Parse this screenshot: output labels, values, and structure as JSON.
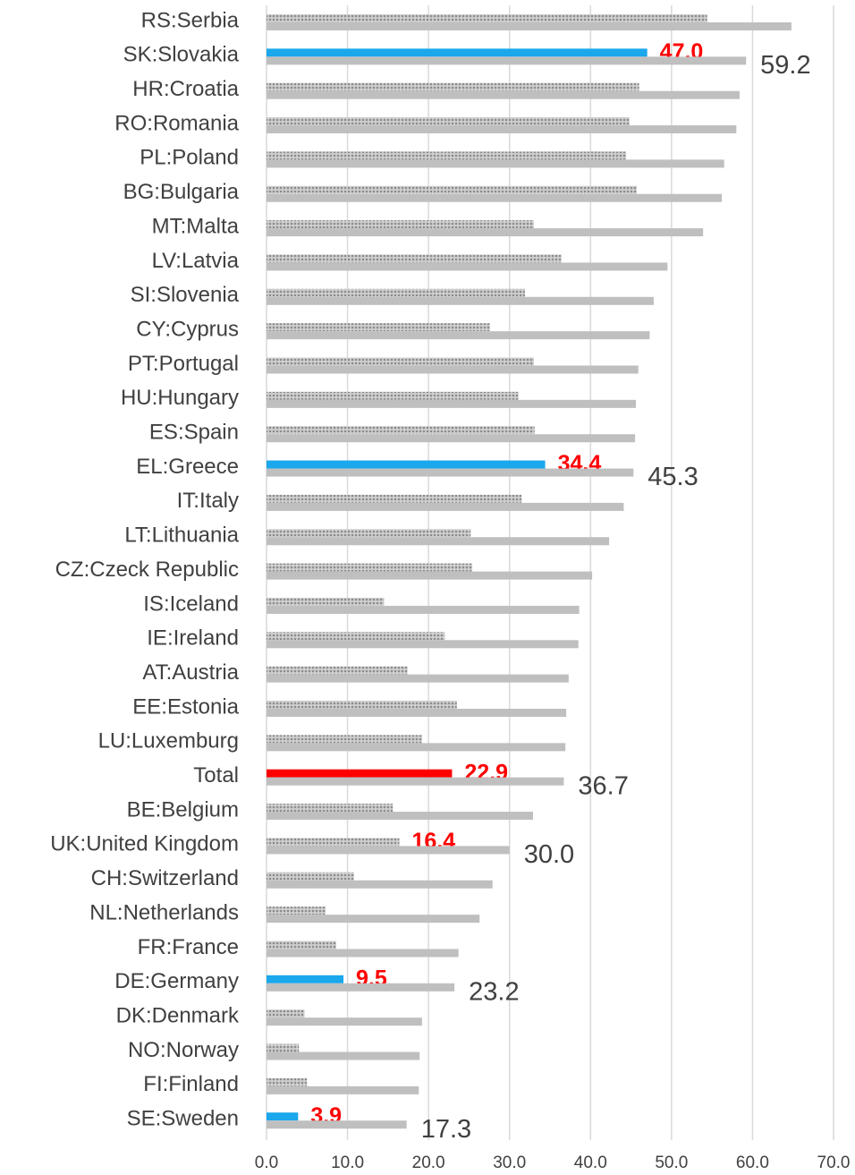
{
  "chart_data": {
    "type": "barh",
    "categories": [
      "RS:Serbia",
      "SK:Slovakia",
      "HR:Croatia",
      "RO:Romania",
      "PL:Poland",
      "BG:Bulgaria",
      "MT:Malta",
      "LV:Latvia",
      "SI:Slovenia",
      "CY:Cyprus",
      "PT:Portugal",
      "HU:Hungary",
      "ES:Spain",
      "EL:Greece",
      "IT:Italy",
      "LT:Lithuania",
      "CZ:Czeck Republic",
      "IS:Iceland",
      "IE:Ireland",
      "AT:Austria",
      "EE:Estonia",
      "LU:Luxemburg",
      "Total",
      "BE:Belgium",
      "UK:United Kingdom",
      "CH:Switzerland",
      "NL:Netherlands",
      "FR:France",
      "DE:Germany",
      "DK:Denmark",
      "NO:Norway",
      "FI:Finland",
      "SE:Sweden"
    ],
    "series": [
      {
        "color": "#8c8c8c",
        "colors": [
          "#8c8c8c",
          "#1aa7ec",
          "#8c8c8c",
          "#8c8c8c",
          "#8c8c8c",
          "#8c8c8c",
          "#8c8c8c",
          "#8c8c8c",
          "#8c8c8c",
          "#8c8c8c",
          "#8c8c8c",
          "#8c8c8c",
          "#8c8c8c",
          "#1aa7ec",
          "#8c8c8c",
          "#8c8c8c",
          "#8c8c8c",
          "#8c8c8c",
          "#8c8c8c",
          "#8c8c8c",
          "#8c8c8c",
          "#8c8c8c",
          "#ff0000",
          "#8c8c8c",
          "#8c8c8c",
          "#8c8c8c",
          "#8c8c8c",
          "#8c8c8c",
          "#1aa7ec",
          "#8c8c8c",
          "#8c8c8c",
          "#8c8c8c",
          "#1aa7ec"
        ],
        "values": [
          54.4,
          47.0,
          46.0,
          44.8,
          44.4,
          45.7,
          33.0,
          36.4,
          31.9,
          27.6,
          33.0,
          31.1,
          33.1,
          34.4,
          31.5,
          25.2,
          25.4,
          14.5,
          22.0,
          17.4,
          23.5,
          19.2,
          22.9,
          15.6,
          16.4,
          10.8,
          7.3,
          8.6,
          9.5,
          4.7,
          4.0,
          5.0,
          3.9
        ],
        "value_labels": [
          null,
          "47.0",
          null,
          null,
          null,
          null,
          null,
          null,
          null,
          null,
          null,
          null,
          null,
          "34.4",
          null,
          null,
          null,
          null,
          null,
          null,
          null,
          null,
          "22.9",
          null,
          "16.4",
          null,
          null,
          null,
          "9.5",
          null,
          null,
          null,
          "3.9"
        ]
      },
      {
        "color": "#bfbfbf",
        "values": [
          64.8,
          59.2,
          58.4,
          58.0,
          56.5,
          56.2,
          53.9,
          49.5,
          47.8,
          47.3,
          45.9,
          45.6,
          45.5,
          45.3,
          44.1,
          42.3,
          40.2,
          38.6,
          38.5,
          37.3,
          37.0,
          36.9,
          36.7,
          32.9,
          30.0,
          27.9,
          26.3,
          23.7,
          23.2,
          19.2,
          18.9,
          18.8,
          17.3
        ],
        "value_labels": [
          null,
          "59.2",
          null,
          null,
          null,
          null,
          null,
          null,
          null,
          null,
          null,
          null,
          null,
          "45.3",
          null,
          null,
          null,
          null,
          null,
          null,
          null,
          null,
          "36.7",
          null,
          "30.0",
          null,
          null,
          null,
          "23.2",
          null,
          null,
          null,
          "17.3"
        ]
      }
    ],
    "xlim": [
      0,
      70
    ],
    "xticks": [
      {
        "value": 0,
        "label": "0.0"
      },
      {
        "value": 10,
        "label": "10.0"
      },
      {
        "value": 20,
        "label": "20.0"
      },
      {
        "value": 30,
        "label": "30.0"
      },
      {
        "value": 40,
        "label": "40.0"
      },
      {
        "value": 50,
        "label": "50.0"
      },
      {
        "value": 60,
        "label": "60.0"
      },
      {
        "value": 70,
        "label": "70.0"
      }
    ],
    "grid": true
  }
}
